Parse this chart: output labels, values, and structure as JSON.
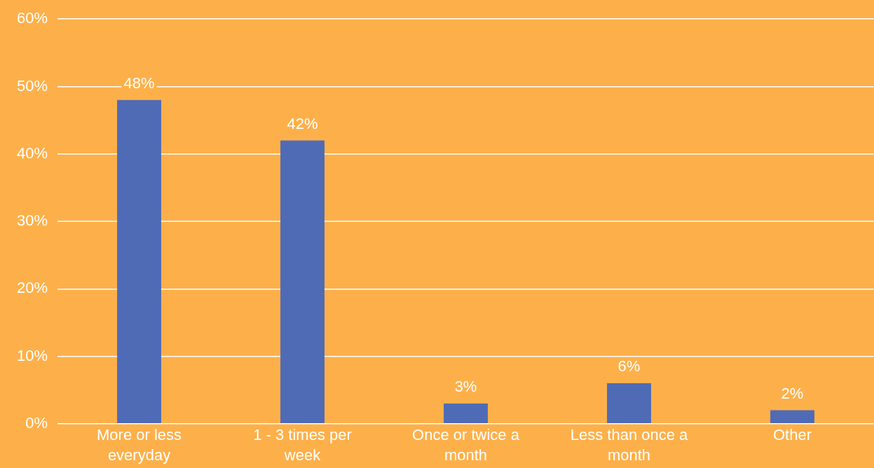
{
  "chart_data": {
    "type": "bar",
    "categories": [
      "More or less everyday",
      "1 - 3 times per week",
      "Once or twice a month",
      "Less than once a month",
      "Other"
    ],
    "values": [
      48,
      42,
      3,
      6,
      2
    ],
    "value_labels": [
      "48%",
      "42%",
      "3%",
      "6%",
      "2%"
    ],
    "color": "#4f6bb5",
    "ylim": [
      0,
      60
    ],
    "yticks": [
      {
        "value": 0,
        "label": "0%"
      },
      {
        "value": 10,
        "label": "10%"
      },
      {
        "value": 20,
        "label": "20%"
      },
      {
        "value": 30,
        "label": "30%"
      },
      {
        "value": 40,
        "label": "40%"
      },
      {
        "value": 50,
        "label": "50%"
      },
      {
        "value": 60,
        "label": "60%"
      }
    ],
    "grid": "y",
    "legend": false
  }
}
